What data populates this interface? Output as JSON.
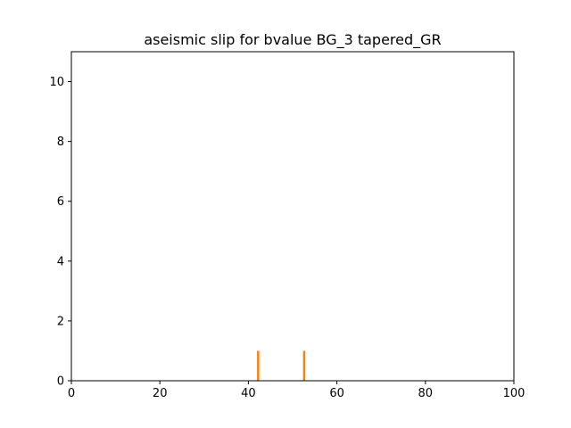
{
  "chart_data": {
    "type": "bar",
    "title": "aseismic slip for bvalue BG_3 tapered_GR",
    "xlabel": "",
    "ylabel": "",
    "xlim": [
      0,
      100
    ],
    "ylim": [
      0,
      11
    ],
    "xticks": [
      0,
      20,
      40,
      60,
      80,
      100
    ],
    "yticks": [
      0,
      2,
      4,
      6,
      8,
      10
    ],
    "grid": false,
    "legend": "none",
    "series": [
      {
        "color": "#ff7f0e",
        "x": [
          42.2,
          52.6
        ],
        "values": [
          1,
          1
        ],
        "bar_width": 0.5
      }
    ]
  }
}
